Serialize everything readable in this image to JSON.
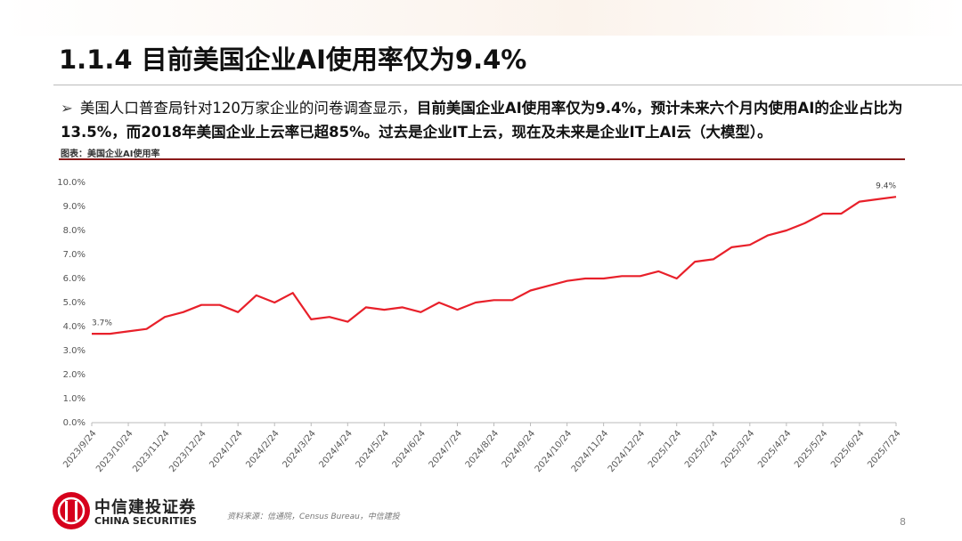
{
  "header": {
    "title": "1.1.4 目前美国企业AI使用率仅为9.4%"
  },
  "bullet": {
    "normal": "美国人口普查局针对120万家企业的问卷调查显示，",
    "bold": "目前美国企业AI使用率仅为9.4%，预计未来六个月内使用AI的企业占比为13.5%，而2018年美国企业上云率已超85%。过去是企业IT上云，现在及未来是企业IT上AI云（大模型）。"
  },
  "caption": "图表：美国企业AI使用率",
  "source": "资料来源：信通院，Census Bureau，中信建投",
  "logo": {
    "cn": "中信建投证券",
    "en": "CHINA SECURITIES"
  },
  "page_number": "8",
  "chart_data": {
    "type": "line",
    "color": "#e8202a",
    "grid": false,
    "categories": [
      "2023/9/24",
      null,
      "2023/10/24",
      null,
      "2023/11/24",
      null,
      "2023/12/24",
      null,
      "2024/1/24",
      null,
      "2024/2/24",
      null,
      "2024/3/24",
      null,
      "2024/4/24",
      null,
      "2024/5/24",
      null,
      "2024/6/24",
      null,
      "2024/7/24",
      null,
      "2024/8/24",
      null,
      "2024/9/24",
      null,
      "2024/10/24",
      null,
      "2024/11/24",
      null,
      "2024/12/24",
      null,
      "2025/1/24",
      null,
      "2025/2/24",
      null,
      "2025/3/24",
      null,
      "2025/4/24",
      null,
      "2025/5/24",
      null,
      "2025/6/24",
      null,
      "2025/7/24"
    ],
    "values": [
      3.7,
      3.7,
      3.8,
      3.9,
      4.4,
      4.6,
      4.9,
      4.9,
      4.6,
      5.3,
      5.0,
      5.4,
      4.3,
      4.4,
      4.2,
      4.8,
      4.7,
      4.8,
      4.6,
      5.0,
      4.7,
      5.0,
      5.1,
      5.1,
      5.5,
      5.7,
      5.9,
      6.0,
      6.0,
      6.1,
      6.1,
      6.3,
      6.0,
      6.7,
      6.8,
      7.3,
      7.4,
      7.8,
      8.0,
      8.3,
      8.7,
      8.7,
      9.2,
      9.3,
      9.4
    ],
    "value_labels": [
      "3.7%",
      null,
      null,
      null,
      null,
      null,
      null,
      null,
      null,
      null,
      null,
      null,
      null,
      null,
      null,
      null,
      null,
      null,
      null,
      null,
      null,
      null,
      null,
      null,
      null,
      null,
      null,
      null,
      null,
      null,
      null,
      null,
      null,
      null,
      null,
      null,
      null,
      null,
      null,
      null,
      null,
      null,
      null,
      null,
      "9.4%"
    ],
    "ylim": [
      0,
      10
    ],
    "yticks": [
      {
        "value": 0,
        "label": "0.0%"
      },
      {
        "value": 1,
        "label": "1.0%"
      },
      {
        "value": 2,
        "label": "2.0%"
      },
      {
        "value": 3,
        "label": "3.0%"
      },
      {
        "value": 4,
        "label": "4.0%"
      },
      {
        "value": 5,
        "label": "5.0%"
      },
      {
        "value": 6,
        "label": "6.0%"
      },
      {
        "value": 7,
        "label": "7.0%"
      },
      {
        "value": 8,
        "label": "8.0%"
      },
      {
        "value": 9,
        "label": "9.0%"
      },
      {
        "value": 10,
        "label": "10.0%"
      }
    ]
  }
}
